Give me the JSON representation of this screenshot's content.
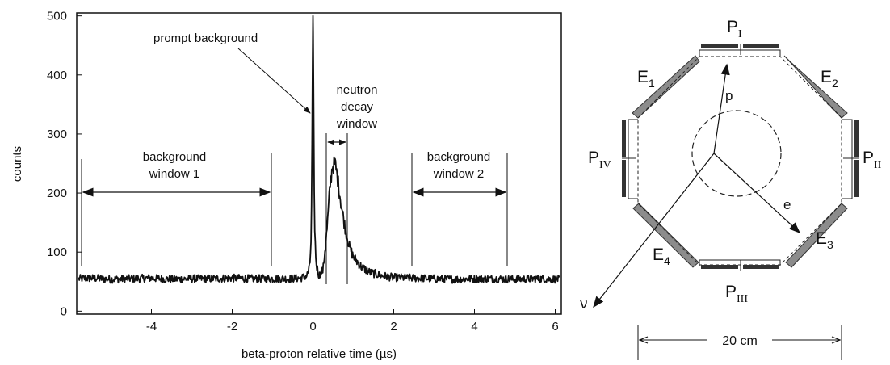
{
  "chart_data": {
    "type": "line",
    "xlabel": "beta-proton relative time (µs)",
    "ylabel": "counts",
    "xlim": [
      -5.85,
      6.15
    ],
    "ylim": [
      -5,
      505
    ],
    "x_ticks": [
      -4,
      -2,
      0,
      2,
      4,
      6
    ],
    "y_ticks": [
      0,
      100,
      200,
      300,
      400,
      500
    ],
    "grid": false,
    "series": [
      {
        "x": [
          -5.8,
          -5.5,
          -5.0,
          -4.5,
          -4.0,
          -3.5,
          -3.0,
          -2.5,
          -2.0,
          -1.5,
          -1.0,
          -0.6,
          -0.3,
          -0.15,
          -0.08,
          -0.04,
          -0.02,
          0.0,
          0.02,
          0.04,
          0.08,
          0.15,
          0.25,
          0.35,
          0.42,
          0.48,
          0.55,
          0.62,
          0.7,
          0.8,
          0.9,
          1.0,
          1.2,
          1.4,
          1.7,
          2.0,
          2.5,
          3.0,
          3.5,
          4.0,
          4.5,
          5.0,
          5.5,
          6.1
        ],
        "y": [
          55,
          56,
          54,
          55,
          56,
          54,
          55,
          55,
          56,
          55,
          55,
          55,
          56,
          60,
          75,
          130,
          300,
          500,
          300,
          140,
          80,
          60,
          70,
          140,
          210,
          245,
          250,
          220,
          180,
          140,
          110,
          92,
          75,
          66,
          60,
          57,
          56,
          55,
          54,
          55,
          55,
          54,
          55,
          54
        ]
      }
    ],
    "annotations": [
      {
        "text": "prompt background"
      },
      {
        "lines": [
          "neutron",
          "decay",
          "window"
        ],
        "range": [
          0.32,
          0.82
        ]
      },
      {
        "lines": [
          "background",
          "window 1"
        ],
        "range": [
          -5.75,
          -1.0
        ]
      },
      {
        "lines": [
          "background",
          "window 2"
        ],
        "range": [
          2.45,
          4.8
        ]
      }
    ]
  },
  "diagram": {
    "labels": {
      "e1": "E",
      "e1_sub": "1",
      "e2": "E",
      "e2_sub": "2",
      "e3": "E",
      "e3_sub": "3",
      "e4": "E",
      "e4_sub": "4",
      "p1": "P",
      "p1_sub": "I",
      "p2": "P",
      "p2_sub": "II",
      "p3": "P",
      "p3_sub": "III",
      "p4": "P",
      "p4_sub": "IV",
      "proton": "p",
      "electron": "e",
      "neutrino": "ν"
    },
    "scale_label": "20 cm"
  }
}
